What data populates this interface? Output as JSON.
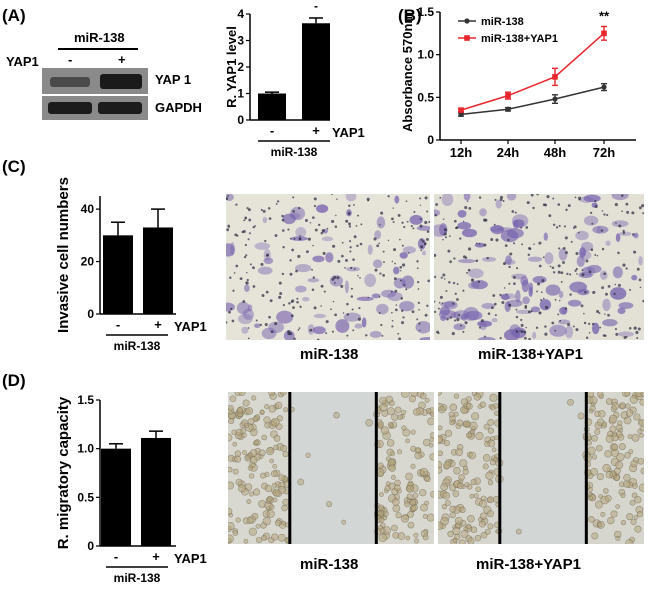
{
  "panels": {
    "A": "(A)",
    "B": "(B)",
    "C": "(C)",
    "D": "(D)"
  },
  "western_blot": {
    "group_label": "miR-138",
    "row_label": "YAP1",
    "lanes": [
      "-",
      "+"
    ],
    "bands": [
      "YAP 1",
      "GAPDH"
    ]
  },
  "chart_data": [
    {
      "id": "A_bar",
      "type": "bar",
      "categories": [
        "-",
        "+"
      ],
      "values": [
        1.0,
        3.65
      ],
      "errors": [
        0.05,
        0.2
      ],
      "ylabel": "R. YAP1 level",
      "ylim": [
        0,
        4
      ],
      "yticks": [
        "0",
        "1",
        "2",
        "3",
        "4"
      ],
      "x_factor_label": "YAP1",
      "group_label": "miR-138",
      "significance": [
        "",
        "-"
      ]
    },
    {
      "id": "B_line",
      "type": "line",
      "categories": [
        "12h",
        "24h",
        "48h",
        "72h"
      ],
      "series": [
        {
          "name": "miR-138",
          "values": [
            0.3,
            0.36,
            0.48,
            0.62
          ],
          "errors": [
            0.02,
            0.02,
            0.05,
            0.04
          ],
          "color": "#333333"
        },
        {
          "name": "miR-138+YAP1",
          "values": [
            0.35,
            0.52,
            0.74,
            1.25
          ],
          "errors": [
            0.02,
            0.04,
            0.1,
            0.08
          ],
          "color": "#e8262d"
        }
      ],
      "ylabel": "Absorbance 570nm",
      "ylim": [
        0,
        1.5
      ],
      "yticks": [
        "0",
        "0.5",
        "1.0",
        "1.5"
      ],
      "annotation": "**",
      "legend": "top-left"
    },
    {
      "id": "C_bar",
      "type": "bar",
      "categories": [
        "-",
        "+"
      ],
      "values": [
        30,
        33
      ],
      "errors": [
        5,
        7
      ],
      "ylabel": "Invasive cell numbers",
      "ylim": [
        0,
        45
      ],
      "yticks": [
        "0",
        "20",
        "40"
      ],
      "x_factor_label": "YAP1",
      "group_label": "miR-138"
    },
    {
      "id": "D_bar",
      "type": "bar",
      "categories": [
        "-",
        "+"
      ],
      "values": [
        1.0,
        1.11
      ],
      "errors": [
        0.05,
        0.07
      ],
      "ylabel": "R. migratory capacity",
      "ylim": [
        0,
        1.5
      ],
      "yticks": [
        "0",
        "0.5",
        "1.0",
        "1.5"
      ],
      "x_factor_label": "YAP1",
      "group_label": "miR-138"
    }
  ],
  "images": {
    "C": [
      "miR-138",
      "miR-138+YAP1"
    ],
    "D": [
      "miR-138",
      "miR-138+YAP1"
    ]
  }
}
